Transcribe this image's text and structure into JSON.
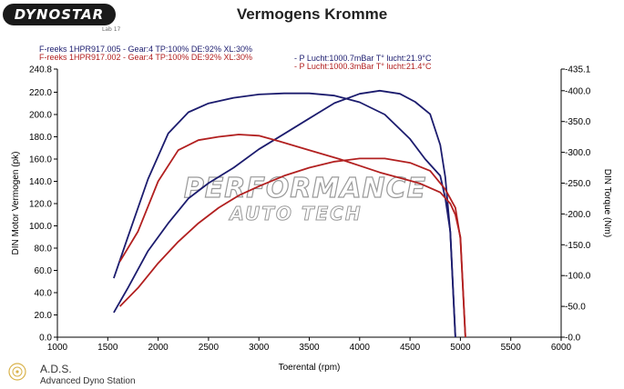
{
  "header": {
    "logo_text": "DYNOSTAR",
    "logo_sub": "Lab 17",
    "title": "Vermogens Kromme"
  },
  "runs": [
    {
      "label": "F-reeks 1HPR917.005 - Gear:4 TP:100% DE:92% XL:30%",
      "conditions": "- P Lucht:1000.7mBar T° lucht:21.9°C",
      "color": "#1c1c6e"
    },
    {
      "label": "F-reeks 1HPR917.002 - Gear:4 TP:100% DE:92% XL:30%",
      "conditions": "- P Lucht:1000.3mBar T° lucht:21.4°C",
      "color": "#b22020"
    }
  ],
  "watermark": {
    "line1": "PERFORMANCE",
    "line2": "AUTO TECH"
  },
  "footer": {
    "name": "A.D.S.",
    "subtitle": "Advanced Dyno Station"
  },
  "chart_data": {
    "type": "line",
    "title": "Vermogens Kromme",
    "xlabel": "Toerental (rpm)",
    "ylabel": "DIN Motor Vermogen (pk)",
    "y2label": "DIN Torque (Nm)",
    "xlim": [
      1000,
      6000
    ],
    "ylim": [
      0,
      240.8
    ],
    "y2lim": [
      0,
      435.1
    ],
    "x_ticks": [
      "1000",
      "1500",
      "2000",
      "2500",
      "3000",
      "3500",
      "4000",
      "4500",
      "5000",
      "5500",
      "6000"
    ],
    "y_ticks": [
      "0.0",
      "20.0",
      "40.0",
      "60.0",
      "80.0",
      "100.0",
      "120.0",
      "140.0",
      "160.0",
      "180.0",
      "200.0",
      "220.0",
      "240.8"
    ],
    "y2_ticks": [
      "-0.0",
      "-50.0",
      "-100.0",
      "-150.0",
      "-200.0",
      "-250.0",
      "-300.0",
      "-350.0",
      "-400.0",
      "-435.1"
    ],
    "y2_tick_values": [
      0,
      50,
      100,
      150,
      200,
      250,
      300,
      350,
      400,
      435.1
    ],
    "grid": false,
    "series": [
      {
        "name": "F-reeks 1HPR917.005",
        "quantity": "power",
        "axis": "left",
        "color": "#1c1c6e",
        "x": [
          1560,
          1700,
          1900,
          2100,
          2300,
          2500,
          2750,
          3000,
          3250,
          3500,
          3750,
          4000,
          4250,
          4500,
          4650,
          4800,
          4850,
          4900,
          4950
        ],
        "y": [
          53,
          90,
          142,
          183,
          202,
          210,
          215,
          218,
          219,
          219,
          217,
          211,
          200,
          178,
          160,
          145,
          125,
          95,
          0
        ]
      },
      {
        "name": "F-reeks 1HPR917.005",
        "quantity": "torque",
        "axis": "right",
        "color": "#1c1c6e",
        "x": [
          1560,
          1700,
          1900,
          2100,
          2300,
          2500,
          2750,
          3000,
          3250,
          3500,
          3750,
          4000,
          4200,
          4400,
          4550,
          4700,
          4800,
          4850,
          4900,
          4950
        ],
        "y": [
          40,
          80,
          140,
          185,
          225,
          250,
          275,
          305,
          330,
          355,
          380,
          395,
          400,
          395,
          382,
          362,
          312,
          260,
          170,
          0
        ]
      },
      {
        "name": "F-reeks 1HPR917.002",
        "quantity": "power",
        "axis": "left",
        "color": "#b22020",
        "x": [
          1620,
          1800,
          2000,
          2200,
          2400,
          2600,
          2800,
          3000,
          3200,
          3500,
          3800,
          4000,
          4200,
          4400,
          4600,
          4800,
          4900,
          4950,
          5000,
          5050
        ],
        "y": [
          68,
          95,
          140,
          168,
          177,
          180,
          182,
          181,
          176,
          168,
          160,
          154,
          148,
          143,
          138,
          130,
          120,
          110,
          90,
          0
        ]
      },
      {
        "name": "F-reeks 1HPR917.002",
        "quantity": "torque",
        "axis": "right",
        "color": "#b22020",
        "x": [
          1620,
          1800,
          2000,
          2200,
          2400,
          2600,
          2800,
          3000,
          3250,
          3500,
          3750,
          4000,
          4250,
          4500,
          4700,
          4850,
          4950,
          5000,
          5050
        ],
        "y": [
          50,
          80,
          120,
          155,
          185,
          210,
          230,
          245,
          262,
          275,
          285,
          290,
          290,
          283,
          270,
          240,
          210,
          160,
          0
        ]
      }
    ]
  }
}
